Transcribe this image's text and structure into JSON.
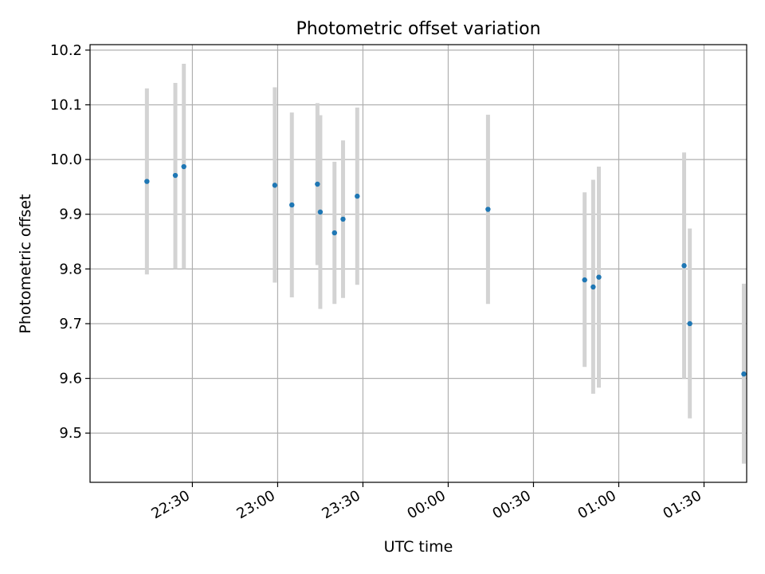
{
  "chart_data": {
    "type": "scatter",
    "title": "Photometric offset variation",
    "xlabel": "UTC time",
    "ylabel": "Photometric offset",
    "x_tick_labels": [
      "22:30",
      "23:00",
      "23:30",
      "00:00",
      "00:30",
      "01:00",
      "01:30"
    ],
    "y_tick_labels": [
      "9.5",
      "9.6",
      "9.7",
      "9.8",
      "9.9",
      "10.0",
      "10.1",
      "10.2"
    ],
    "ylim": [
      9.41,
      10.21
    ],
    "grid": true,
    "colors": {
      "point": "#1f77b4",
      "errorbar": "#d3d3d3",
      "grid": "#b0b0b0"
    },
    "series": [
      {
        "points": [
          {
            "x": "22:14",
            "y": 9.96,
            "err_low": 9.79,
            "err_high": 10.13
          },
          {
            "x": "22:24",
            "y": 9.971,
            "err_low": 9.8,
            "err_high": 10.14
          },
          {
            "x": "22:27",
            "y": 9.987,
            "err_low": 9.8,
            "err_high": 10.175
          },
          {
            "x": "22:59",
            "y": 9.953,
            "err_low": 9.775,
            "err_high": 10.132
          },
          {
            "x": "23:05",
            "y": 9.917,
            "err_low": 9.748,
            "err_high": 10.086
          },
          {
            "x": "23:14",
            "y": 9.955,
            "err_low": 9.807,
            "err_high": 10.103
          },
          {
            "x": "23:15",
            "y": 9.904,
            "err_low": 9.727,
            "err_high": 10.081
          },
          {
            "x": "23:20",
            "y": 9.866,
            "err_low": 9.736,
            "err_high": 9.996
          },
          {
            "x": "23:23",
            "y": 9.891,
            "err_low": 9.747,
            "err_high": 10.035
          },
          {
            "x": "23:28",
            "y": 9.933,
            "err_low": 9.771,
            "err_high": 10.095
          },
          {
            "x": "00:14",
            "y": 9.909,
            "err_low": 9.736,
            "err_high": 10.082
          },
          {
            "x": "00:48",
            "y": 9.78,
            "err_low": 9.621,
            "err_high": 9.94
          },
          {
            "x": "00:51",
            "y": 9.767,
            "err_low": 9.572,
            "err_high": 9.963
          },
          {
            "x": "00:53",
            "y": 9.785,
            "err_low": 9.583,
            "err_high": 9.987
          },
          {
            "x": "01:23",
            "y": 9.806,
            "err_low": 9.6,
            "err_high": 10.013
          },
          {
            "x": "01:25",
            "y": 9.7,
            "err_low": 9.527,
            "err_high": 9.874
          },
          {
            "x": "01:44",
            "y": 9.608,
            "err_low": 9.444,
            "err_high": 9.773
          }
        ]
      }
    ]
  }
}
